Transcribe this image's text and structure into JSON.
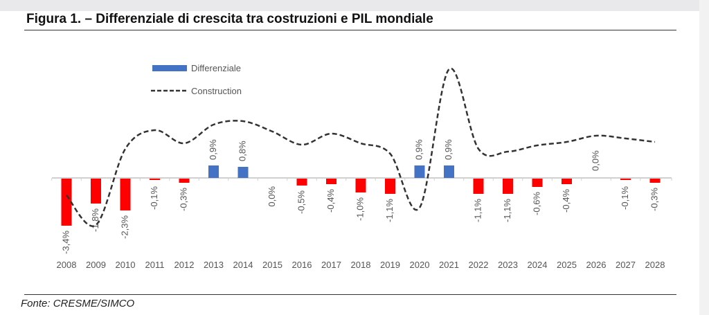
{
  "chart_data": {
    "type": "bar",
    "title": "Figura 1. – Differenziale di crescita tra costruzioni e PIL mondiale",
    "source": "Fonte: CRESME/SIMCO",
    "categories": [
      "2008",
      "2009",
      "2010",
      "2011",
      "2012",
      "2013",
      "2014",
      "2015",
      "2016",
      "2017",
      "2018",
      "2019",
      "2020",
      "2021",
      "2022",
      "2023",
      "2024",
      "2025",
      "2026",
      "2027",
      "2028"
    ],
    "series": [
      {
        "name": "Differenziale",
        "type": "bar",
        "values": [
          -3.4,
          -1.8,
          -2.3,
          -0.1,
          -0.3,
          0.9,
          0.8,
          0.0,
          -0.5,
          -0.4,
          -1.0,
          -1.1,
          0.9,
          0.9,
          -1.1,
          -1.1,
          -0.6,
          -0.4,
          0.0,
          -0.1,
          -0.3
        ],
        "labels": [
          "-3,4%",
          "-1,8%",
          "-2,3%",
          "-0,1%",
          "-0,3%",
          "0,9%",
          "0,8%",
          "0,0%",
          "-0,5%",
          "-0,4%",
          "-1,0%",
          "-1,1%",
          "0,9%",
          "0,9%",
          "-1,1%",
          "-1,1%",
          "-0,6%",
          "-0,4%",
          "0,0%",
          "-0,1%",
          "-0,3%"
        ],
        "label_pos": [
          "below",
          "below",
          "below",
          "below",
          "below",
          "above",
          "above",
          "below",
          "below",
          "below",
          "below",
          "below",
          "above",
          "above",
          "below",
          "below",
          "below",
          "below",
          "above",
          "below",
          "below"
        ]
      },
      {
        "name": "Construction",
        "type": "line",
        "style": "dashed",
        "values": [
          -1.25,
          -3.4,
          2.1,
          3.45,
          2.5,
          3.85,
          4.1,
          3.35,
          2.4,
          3.2,
          2.5,
          1.75,
          -2.15,
          7.85,
          2.1,
          1.9,
          2.35,
          2.6,
          3.05,
          2.85,
          2.6
        ]
      }
    ],
    "ylim": [
      -6,
      8
    ],
    "grid": false,
    "legend": "top-left",
    "colors": {
      "positive": "#4472c4",
      "negative": "#ff0000",
      "line": "#333333",
      "axis": "#d0d0d0"
    }
  }
}
